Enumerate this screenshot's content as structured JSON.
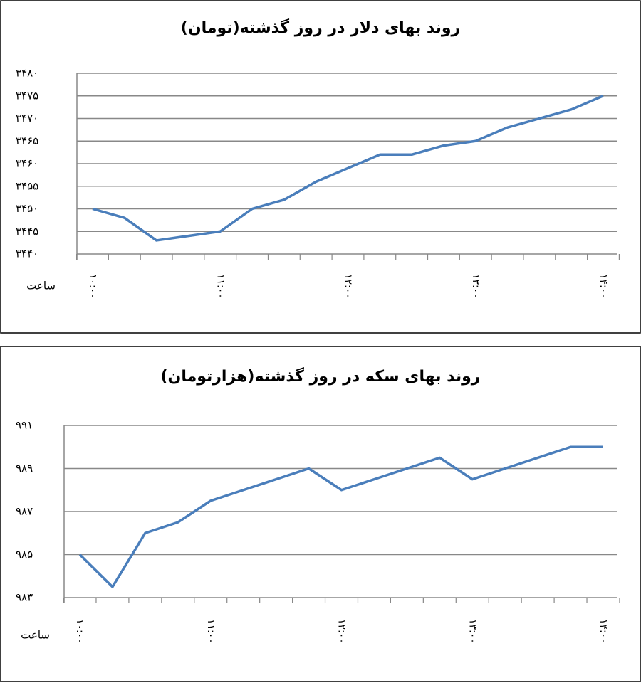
{
  "chart_data": [
    {
      "type": "line",
      "title": "روند بهای دلار در روز گذشته(تومان)",
      "x_label": "ساعت",
      "categories": [
        "۱۰:۰۰",
        null,
        null,
        null,
        "۱۱:۰۰",
        null,
        null,
        null,
        "۱۲:۰۰",
        null,
        null,
        null,
        "۱۳:۰۰",
        null,
        null,
        null,
        "۱۴:۰۰"
      ],
      "series": [
        {
          "color": "#4a7ebb",
          "values": [
            3450,
            3448,
            3443,
            3444,
            3445,
            3450,
            3452,
            3456,
            3459,
            3462,
            3462,
            3464,
            3465,
            3468,
            3470,
            3472,
            3475
          ]
        }
      ],
      "ylim": [
        3440,
        3480
      ],
      "yticks": [
        {
          "value": 3440,
          "label": "۳۴۴۰"
        },
        {
          "value": 3445,
          "label": "۳۴۴۵"
        },
        {
          "value": 3450,
          "label": "۳۴۵۰"
        },
        {
          "value": 3455,
          "label": "۳۴۵۵"
        },
        {
          "value": 3460,
          "label": "۳۴۶۰"
        },
        {
          "value": 3465,
          "label": "۳۴۶۵"
        },
        {
          "value": 3470,
          "label": "۳۴۷۰"
        },
        {
          "value": 3475,
          "label": "۳۴۷۵"
        },
        {
          "value": 3480,
          "label": "۳۴۸۰"
        }
      ],
      "grid": true
    },
    {
      "type": "line",
      "title": "روند بهای سکه در روز گذشته(هزارتومان)",
      "x_label": "ساعت",
      "categories": [
        "۱۰:۰۰",
        null,
        null,
        null,
        "۱۱:۰۰",
        null,
        null,
        null,
        "۱۲:۰۰",
        null,
        null,
        null,
        "۱۳:۰۰",
        null,
        null,
        null,
        "۱۴:۰۰"
      ],
      "series": [
        {
          "color": "#4a7ebb",
          "values": [
            985,
            983.5,
            986,
            986.5,
            987.5,
            988,
            988.5,
            989,
            988,
            988.5,
            989,
            989.5,
            988.5,
            989,
            989.5,
            990,
            990
          ]
        }
      ],
      "ylim": [
        983,
        991
      ],
      "yticks": [
        {
          "value": 983,
          "label": "۹۸۳"
        },
        {
          "value": 985,
          "label": "۹۸۵"
        },
        {
          "value": 987,
          "label": "۹۸۷"
        },
        {
          "value": 989,
          "label": "۹۸۹"
        },
        {
          "value": 991,
          "label": "۹۹۱"
        }
      ],
      "grid": true
    }
  ]
}
